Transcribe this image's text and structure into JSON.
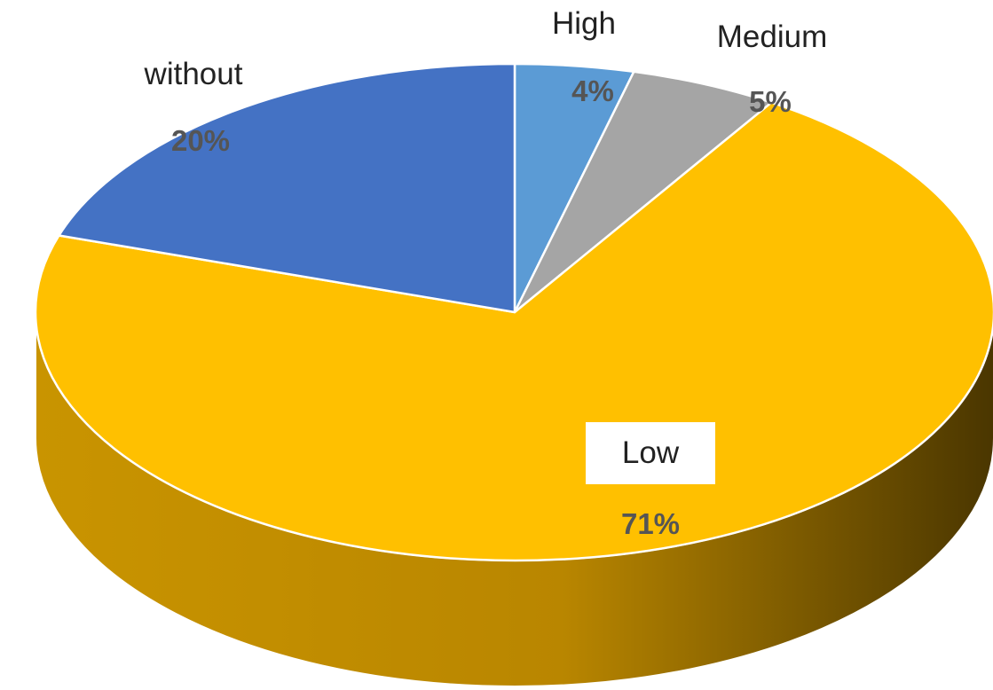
{
  "chart_data": {
    "type": "pie",
    "style": "3d",
    "slices": [
      {
        "label": "High",
        "value": 4,
        "value_label": "4%",
        "color": "#5B9BD5"
      },
      {
        "label": "Medium",
        "value": 5,
        "value_label": "5%",
        "color": "#A5A5A5"
      },
      {
        "label": "Low",
        "value": 71,
        "value_label": "71%",
        "color": "#FFC000"
      },
      {
        "label": "without",
        "value": 20,
        "value_label": "20%",
        "color": "#4472C4"
      }
    ],
    "legend": "none"
  }
}
